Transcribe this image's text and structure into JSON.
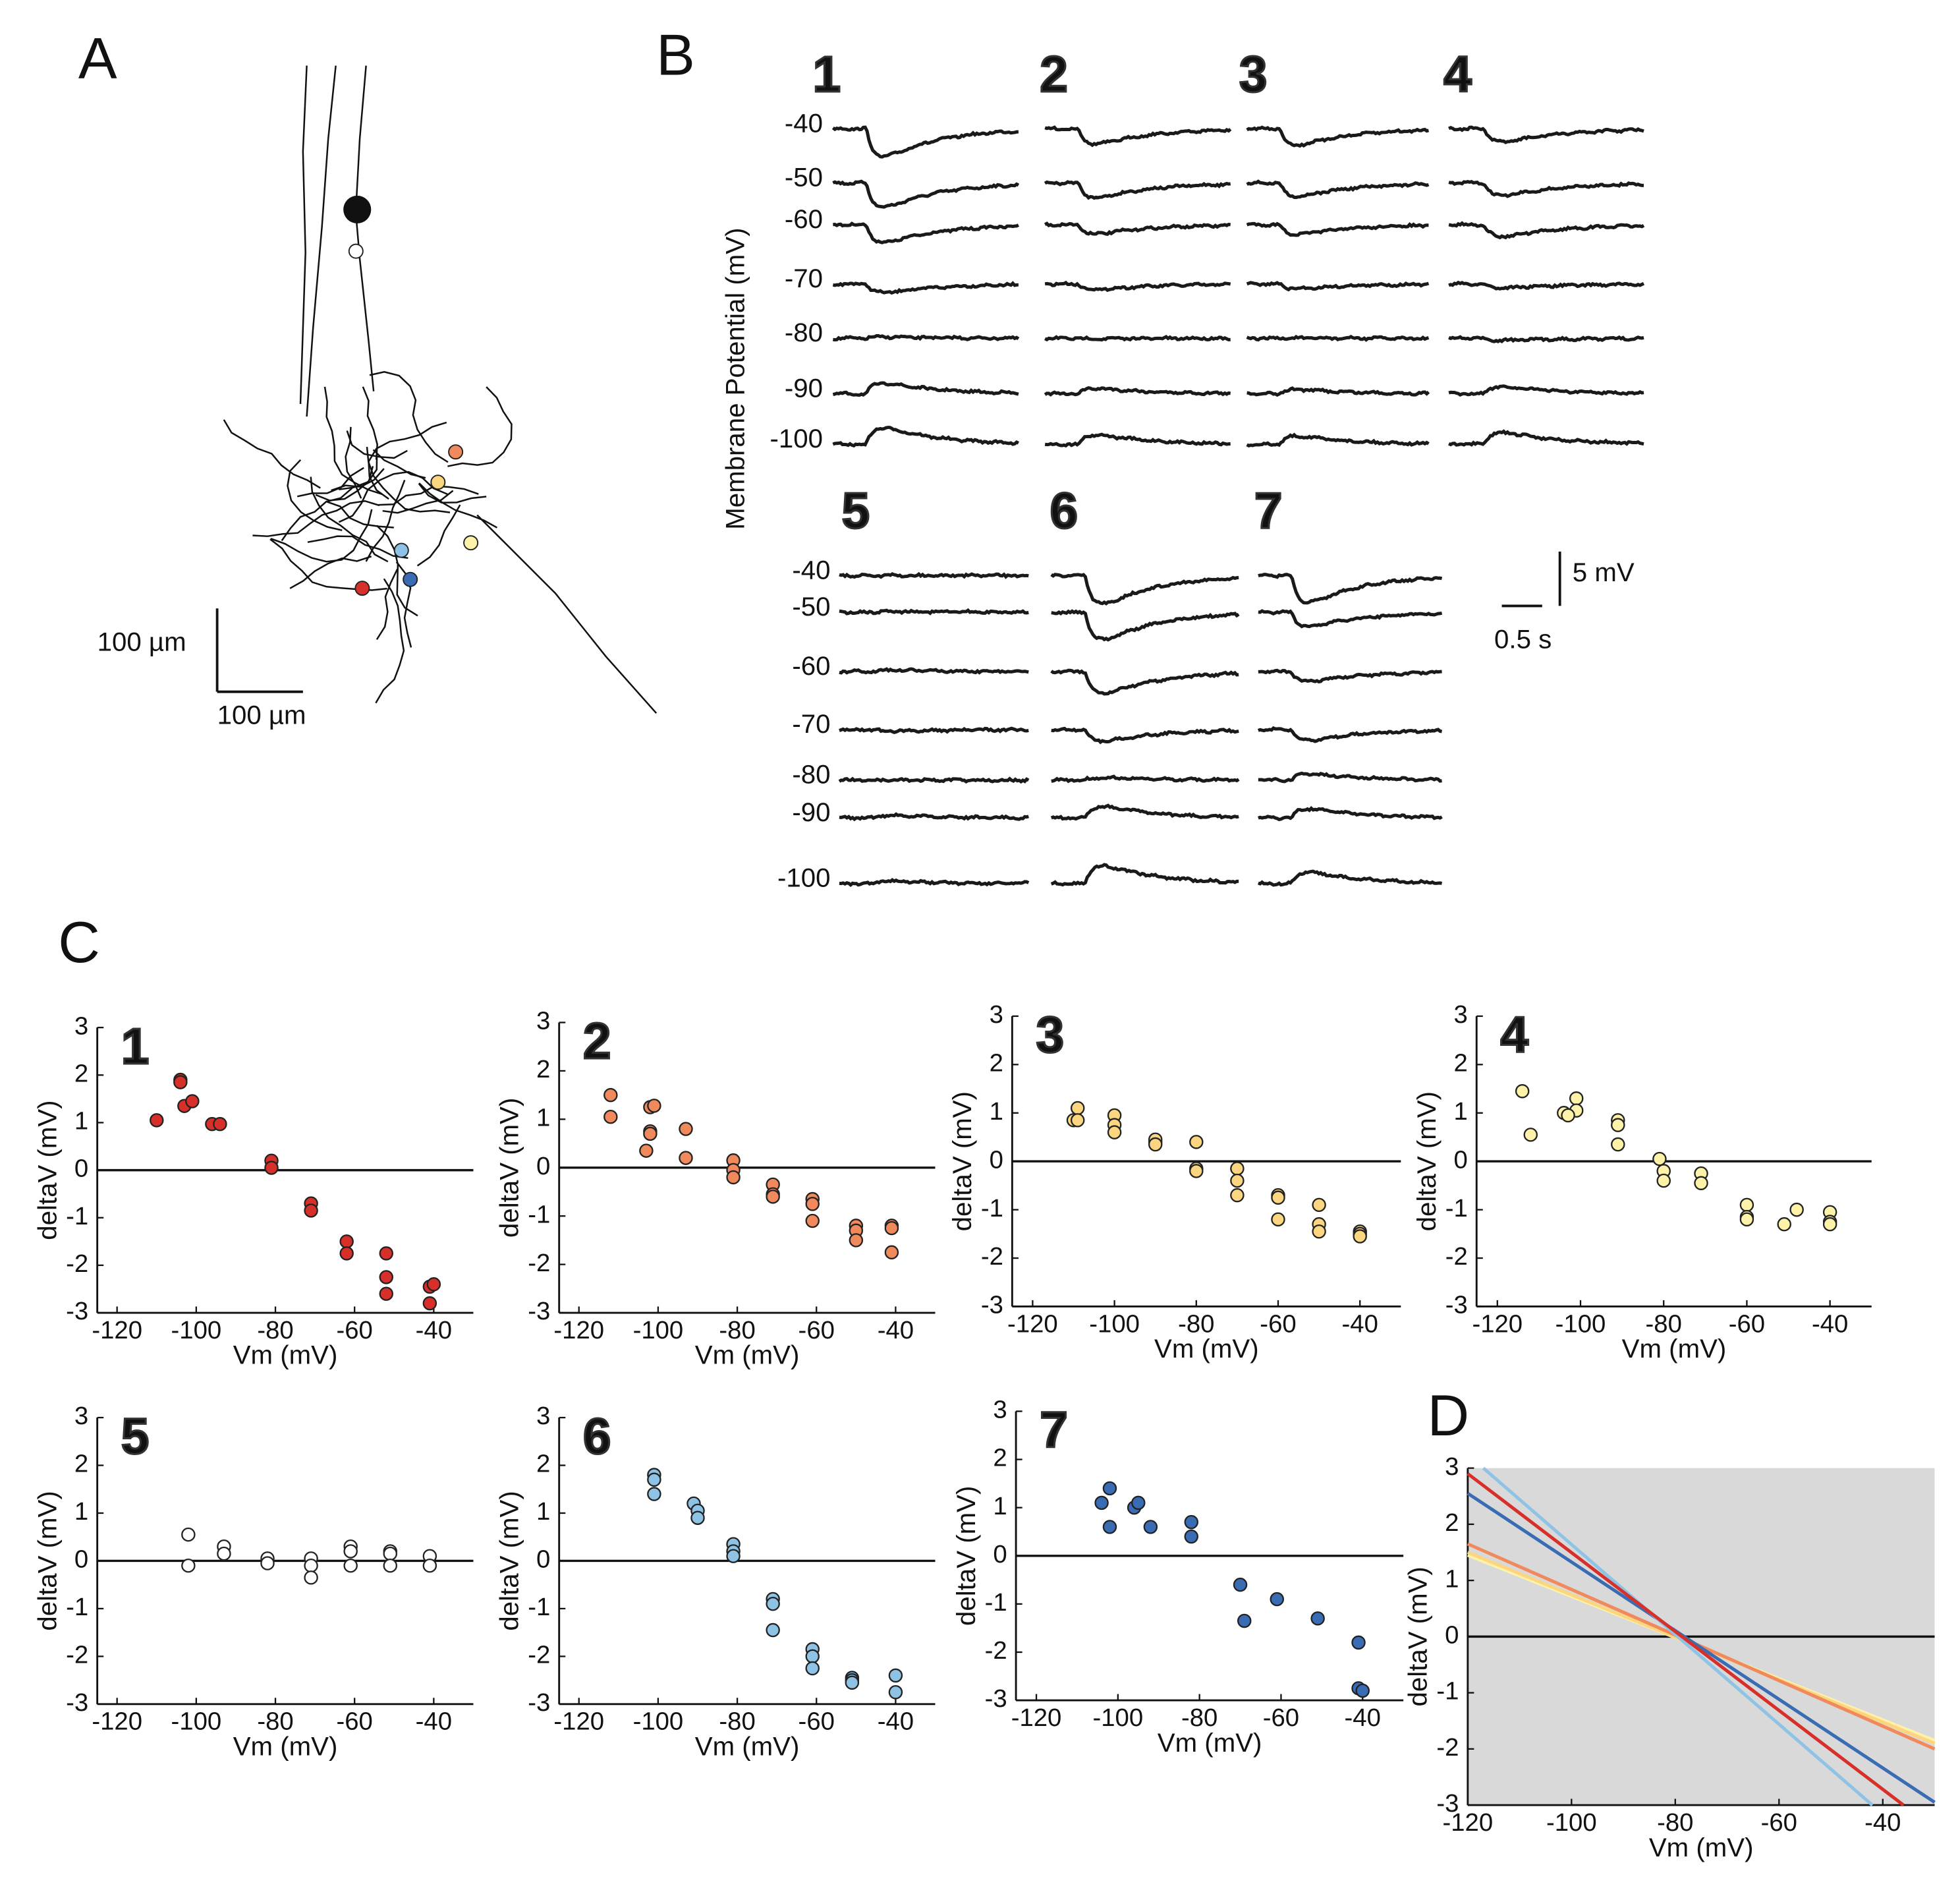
{
  "panel_labels": [
    "A",
    "B",
    "C",
    "D"
  ],
  "panel_a": {
    "scale_vertical": "100 µm",
    "scale_horizontal": "100 µm"
  },
  "panel_b": {
    "y_label": "Membrane Potential (mV)",
    "holding_potentials": [
      -40,
      -50,
      -60,
      -70,
      -80,
      -90,
      -100
    ],
    "scale_voltage": "5 mV",
    "scale_time": "0.5 s"
  },
  "chart_data": [
    {
      "type": "scatter",
      "title": "1",
      "x_label": "Vm (mV)",
      "y_label": "deltaV (mV)",
      "xlim": [
        -125,
        -30
      ],
      "ylim": [
        -3,
        3
      ],
      "xticks": [
        -120,
        -100,
        -80,
        -60,
        -40
      ],
      "yticks": [
        -3,
        -2,
        -1,
        0,
        1,
        2,
        3
      ],
      "zero_line": true,
      "series": [
        {
          "color": "#d7302a",
          "x": [
            -110,
            -104,
            -104,
            -103,
            -101,
            -96,
            -94,
            -81,
            -81,
            -71,
            -71,
            -62,
            -62,
            -52,
            -52,
            -52,
            -41,
            -40,
            -41
          ],
          "values": [
            1.05,
            1.9,
            1.85,
            1.35,
            1.45,
            0.97,
            0.97,
            0.2,
            0.05,
            -0.7,
            -0.85,
            -1.5,
            -1.75,
            -1.75,
            -2.25,
            -2.6,
            -2.45,
            -2.4,
            -2.8
          ]
        }
      ]
    },
    {
      "type": "scatter",
      "title": "2",
      "x_label": "Vm (mV)",
      "y_label": "deltaV (mV)",
      "xlim": [
        -125,
        -30
      ],
      "ylim": [
        -3,
        3
      ],
      "xticks": [
        -120,
        -100,
        -80,
        -60,
        -40
      ],
      "yticks": [
        -3,
        -2,
        -1,
        0,
        1,
        2,
        3
      ],
      "zero_line": true,
      "series": [
        {
          "color": "#f08a5d",
          "x": [
            -112,
            -112,
            -102,
            -101,
            -102,
            -102,
            -103,
            -93,
            -93,
            -81,
            -81,
            -81,
            -71,
            -71,
            -71,
            -61,
            -61,
            -61,
            -50,
            -50,
            -50,
            -41,
            -41,
            -41
          ],
          "values": [
            1.5,
            1.05,
            1.25,
            1.28,
            0.75,
            0.7,
            0.35,
            0.8,
            0.2,
            0.15,
            -0.05,
            -0.2,
            -0.35,
            -0.55,
            -0.6,
            -0.65,
            -0.75,
            -1.1,
            -1.2,
            -1.3,
            -1.5,
            -1.2,
            -1.25,
            -1.75
          ]
        }
      ]
    },
    {
      "type": "scatter",
      "title": "3",
      "x_label": "Vm (mV)",
      "y_label": "deltaV (mV)",
      "xlim": [
        -125,
        -30
      ],
      "ylim": [
        -3,
        3
      ],
      "xticks": [
        -120,
        -100,
        -80,
        -60,
        -40
      ],
      "yticks": [
        -3,
        -2,
        -1,
        0,
        1,
        2,
        3
      ],
      "zero_line": true,
      "series": [
        {
          "color": "#fbd580",
          "x": [
            -110,
            -109,
            -109,
            -100,
            -100,
            -100,
            -90,
            -90,
            -90,
            -80,
            -80,
            -80,
            -70,
            -70,
            -70,
            -60,
            -60,
            -60,
            -50,
            -50,
            -50,
            -40,
            -40,
            -40
          ],
          "values": [
            0.85,
            1.1,
            0.85,
            0.95,
            0.75,
            0.6,
            0.4,
            0.45,
            0.35,
            0.4,
            -0.15,
            -0.2,
            -0.15,
            -0.4,
            -0.7,
            -0.7,
            -0.75,
            -1.2,
            -0.9,
            -1.3,
            -1.45,
            -1.45,
            -1.5,
            -1.55
          ]
        }
      ]
    },
    {
      "type": "scatter",
      "title": "4",
      "x_label": "Vm (mV)",
      "y_label": "deltaV (mV)",
      "xlim": [
        -125,
        -30
      ],
      "ylim": [
        -3,
        3
      ],
      "xticks": [
        -120,
        -100,
        -80,
        -60,
        -40
      ],
      "yticks": [
        -3,
        -2,
        -1,
        0,
        1,
        2,
        3
      ],
      "zero_line": true,
      "series": [
        {
          "color": "#fdf2a8",
          "x": [
            -114,
            -112,
            -104,
            -101,
            -101,
            -103,
            -91,
            -91,
            -91,
            -81,
            -80,
            -80,
            -71,
            -71,
            -60,
            -60,
            -60,
            -51,
            -48,
            -40,
            -40,
            -40
          ],
          "values": [
            1.45,
            0.55,
            1.0,
            1.3,
            1.05,
            0.95,
            0.85,
            0.75,
            0.35,
            0.05,
            -0.2,
            -0.4,
            -0.25,
            -0.45,
            -0.9,
            -1.15,
            -1.2,
            -1.3,
            -1.0,
            -1.05,
            -1.25,
            -1.3
          ]
        }
      ]
    },
    {
      "type": "scatter",
      "title": "5",
      "x_label": "Vm (mV)",
      "y_label": "deltaV (mV)",
      "xlim": [
        -125,
        -30
      ],
      "ylim": [
        -3,
        3
      ],
      "xticks": [
        -120,
        -100,
        -80,
        -60,
        -40
      ],
      "yticks": [
        -3,
        -2,
        -1,
        0,
        1,
        2,
        3
      ],
      "zero_line": true,
      "series": [
        {
          "color": "#ffffff",
          "x": [
            -102,
            -102,
            -93,
            -93,
            -82,
            -82,
            -71,
            -71,
            -71,
            -61,
            -61,
            -61,
            -51,
            -51,
            -51,
            -41,
            -41
          ],
          "values": [
            0.55,
            -0.1,
            0.3,
            0.15,
            0.05,
            -0.05,
            0.05,
            -0.1,
            -0.35,
            0.3,
            0.2,
            -0.1,
            0.2,
            0.15,
            -0.1,
            0.1,
            -0.1
          ]
        }
      ]
    },
    {
      "type": "scatter",
      "title": "6",
      "x_label": "Vm (mV)",
      "y_label": "deltaV (mV)",
      "xlim": [
        -125,
        -30
      ],
      "ylim": [
        -3,
        3
      ],
      "xticks": [
        -120,
        -100,
        -80,
        -60,
        -40
      ],
      "yticks": [
        -3,
        -2,
        -1,
        0,
        1,
        2,
        3
      ],
      "zero_line": true,
      "series": [
        {
          "color": "#8fc3e6",
          "x": [
            -101,
            -101,
            -101,
            -91,
            -90,
            -90,
            -81,
            -81,
            -81,
            -71,
            -71,
            -71,
            -61,
            -61,
            -61,
            -51,
            -51,
            -51,
            -40,
            -40
          ],
          "values": [
            1.8,
            1.7,
            1.4,
            1.2,
            1.05,
            0.9,
            0.35,
            0.2,
            0.1,
            -0.8,
            -0.9,
            -1.45,
            -1.85,
            -2.0,
            -2.25,
            -2.45,
            -2.5,
            -2.55,
            -2.4,
            -2.75
          ]
        }
      ]
    },
    {
      "type": "scatter",
      "title": "7",
      "x_label": "Vm (mV)",
      "y_label": "deltaV (mV)",
      "xlim": [
        -125,
        -30
      ],
      "ylim": [
        -3,
        3
      ],
      "xticks": [
        -120,
        -100,
        -80,
        -60,
        -40
      ],
      "yticks": [
        -3,
        -2,
        -1,
        0,
        1,
        2,
        3
      ],
      "zero_line": true,
      "series": [
        {
          "color": "#3a6cb4",
          "x": [
            -104,
            -102,
            -102,
            -96,
            -95,
            -92,
            -82,
            -82,
            -70,
            -69,
            -61,
            -51,
            -41,
            -41,
            -40
          ],
          "values": [
            1.1,
            1.4,
            0.6,
            1.0,
            1.1,
            0.6,
            0.7,
            0.4,
            -0.6,
            -1.35,
            -0.9,
            -1.3,
            -1.8,
            -2.75,
            -2.8
          ]
        }
      ]
    },
    {
      "type": "line",
      "x_label": "Vm (mV)",
      "y_label": "deltaV (mV)",
      "xlim": [
        -120,
        -30
      ],
      "ylim": [
        -3,
        3
      ],
      "xticks": [
        -120,
        -100,
        -80,
        -60,
        -40
      ],
      "yticks": [
        -3,
        -2,
        -1,
        0,
        1,
        2,
        3
      ],
      "zero_line": true,
      "background": "#d9d9d9",
      "series": [
        {
          "color": "#fdf2a8",
          "x": [
            -120,
            -30
          ],
          "values": [
            1.45,
            -1.85
          ]
        },
        {
          "color": "#fbd580",
          "x": [
            -120,
            -30
          ],
          "values": [
            1.5,
            -1.9
          ]
        },
        {
          "color": "#f08a5d",
          "x": [
            -120,
            -30
          ],
          "values": [
            1.65,
            -2.0
          ]
        },
        {
          "color": "#3a6cb4",
          "x": [
            -120,
            -30
          ],
          "values": [
            2.55,
            -2.95
          ]
        },
        {
          "color": "#8fc3e6",
          "x": [
            -117,
            -42
          ],
          "values": [
            3,
            -3
          ]
        },
        {
          "color": "#d7302a",
          "x": [
            -120,
            -36
          ],
          "values": [
            2.9,
            -3
          ]
        }
      ]
    }
  ]
}
